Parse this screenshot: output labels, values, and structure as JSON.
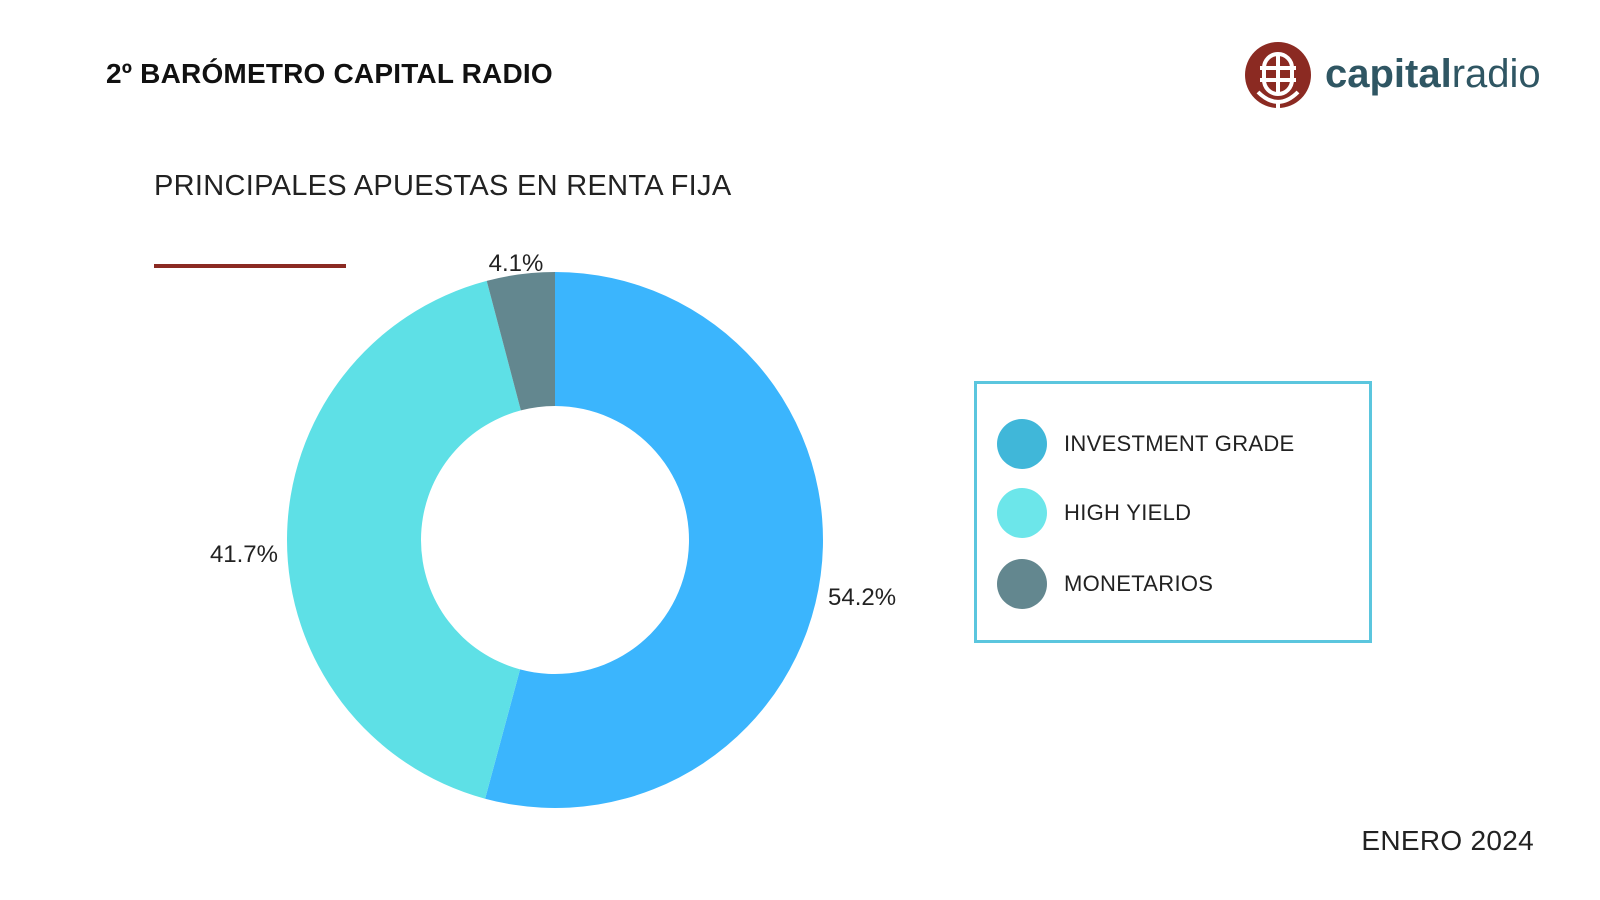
{
  "header": {
    "title": "2º BARÓMETRO CAPITAL RADIO"
  },
  "brand": {
    "logo_icon": "microphone-globe-icon",
    "name_bold": "capital",
    "name_light": "radio",
    "text_color": "#2f5663",
    "icon_color": "#8b2a22"
  },
  "accent_color": "#8b2a22",
  "footer": {
    "date": "ENERO 2024"
  },
  "chart_data": {
    "type": "pie",
    "style": "donut",
    "title": "PRINCIPALES APUESTAS EN RENTA FIJA",
    "legend_position": "right",
    "slices": [
      {
        "label": "INVESTMENT GRADE",
        "value": 54.2,
        "value_label": "54.2%",
        "color": "#3bb5fd",
        "legend_color": "#40b7d9"
      },
      {
        "label": "HIGH YIELD",
        "value": 41.7,
        "value_label": "41.7%",
        "color": "#5ee0e6",
        "legend_color": "#6ce6ea"
      },
      {
        "label": "MONETARIOS",
        "value": 4.1,
        "value_label": "4.1%",
        "color": "#63878f",
        "legend_color": "#63878f"
      }
    ]
  }
}
